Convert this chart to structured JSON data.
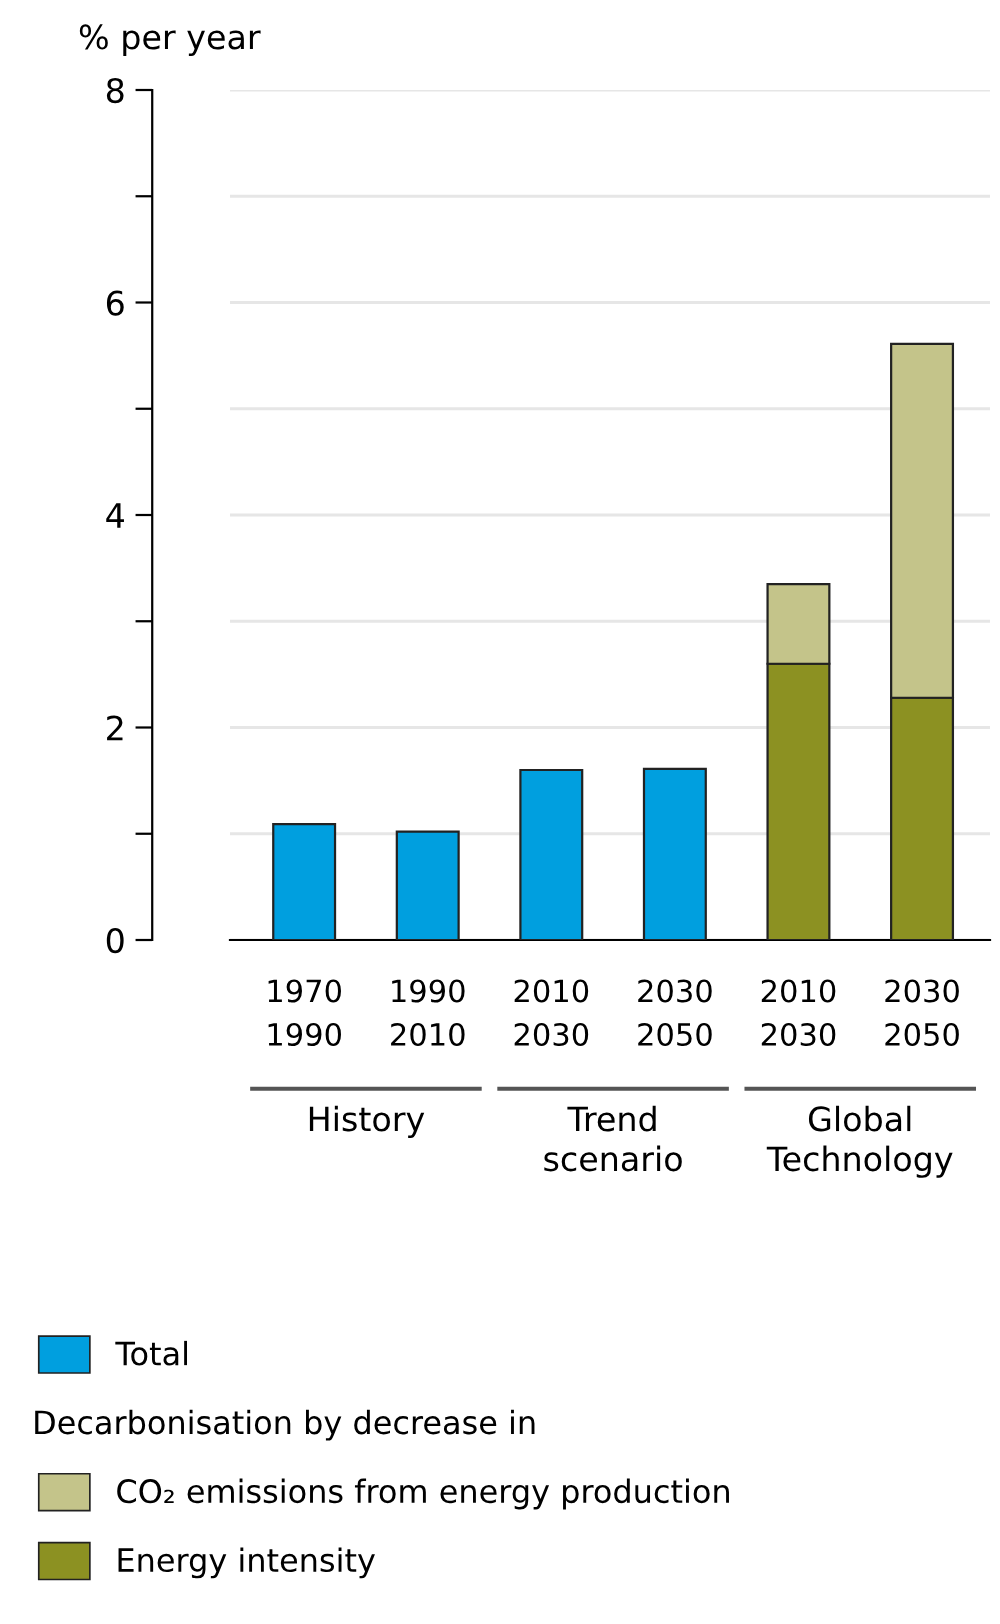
{
  "chart_data": {
    "type": "bar",
    "stacked": true,
    "ylabel": "% per year",
    "categories": [
      "1970\n1990",
      "1990\n2010",
      "2010\n2030",
      "2030\n2050",
      "2010\n2030",
      "2030\n2050"
    ],
    "series": [
      {
        "name": "Total",
        "color": "#009fdf",
        "values": [
          1.09,
          1.02,
          1.6,
          1.61,
          null,
          null
        ]
      },
      {
        "name": "Energy intensity",
        "color": "#8c9122",
        "values": [
          null,
          null,
          null,
          null,
          2.6,
          2.28
        ]
      },
      {
        "name": "CO₂ emissions from energy production",
        "color": "#c4c48a",
        "values": [
          null,
          null,
          null,
          null,
          0.75,
          3.33
        ]
      }
    ],
    "ylim": [
      0,
      8
    ],
    "yticks": [
      0,
      {
        "value": 1,
        "label": null
      },
      2,
      {
        "value": 3,
        "label": null
      },
      4,
      {
        "value": 5,
        "label": null
      },
      6,
      {
        "value": 7,
        "label": null
      },
      8
    ],
    "grid": "y",
    "legend": "bottom",
    "annotations": [
      "History",
      "Trend\nscenario",
      "Global\nTechnology",
      "Decarbonisation by decrease in"
    ]
  }
}
